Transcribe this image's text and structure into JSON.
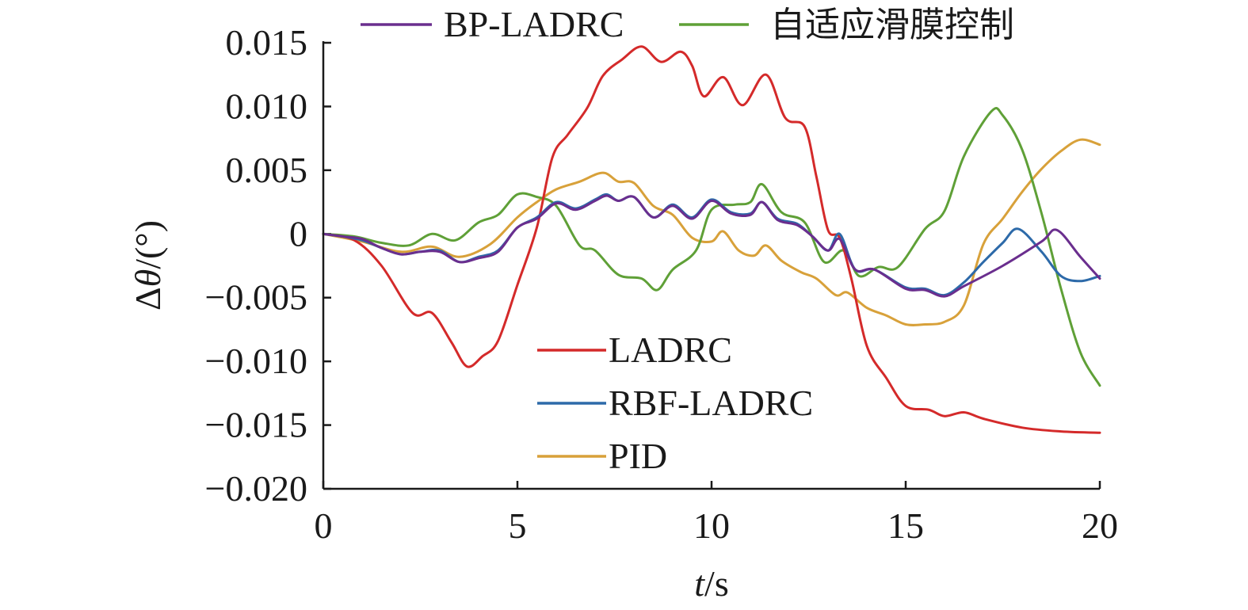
{
  "chart_data": {
    "type": "line",
    "title": "",
    "xlabel_italic": "t",
    "xlabel_unit": "/s",
    "ylabel_symbol": "Δ",
    "ylabel_italic": "θ",
    "ylabel_unit": "/(°)",
    "xlim": [
      0,
      20
    ],
    "ylim": [
      -0.02,
      0.015
    ],
    "x_ticks": [
      0,
      5,
      10,
      15,
      20
    ],
    "x_tick_labels": [
      "0",
      "5",
      "10",
      "15",
      "20"
    ],
    "y_ticks": [
      -0.02,
      -0.015,
      -0.01,
      -0.005,
      0,
      0.005,
      0.01,
      0.015
    ],
    "y_tick_labels": [
      "−0.020",
      "−0.015",
      "−0.010",
      "−0.005",
      "0",
      "0.005",
      "0.010",
      "0.015"
    ],
    "grid": false,
    "legend_placement": "top and center (split)",
    "series": [
      {
        "name": "BP-LADRC",
        "color": "#6a2e8e",
        "points": [
          [
            0,
            0
          ],
          [
            0.5,
            -0.0002
          ],
          [
            1,
            -0.0004
          ],
          [
            1.5,
            -0.0011
          ],
          [
            2,
            -0.0016
          ],
          [
            2.5,
            -0.0014
          ],
          [
            3,
            -0.0014
          ],
          [
            3.5,
            -0.0022
          ],
          [
            4,
            -0.0019
          ],
          [
            4.5,
            -0.0014
          ],
          [
            5,
            0.0005
          ],
          [
            5.5,
            0.0012
          ],
          [
            6,
            0.0024
          ],
          [
            6.5,
            0.0019
          ],
          [
            7,
            0.0026
          ],
          [
            7.3,
            0.003
          ],
          [
            7.6,
            0.0026
          ],
          [
            8,
            0.0029
          ],
          [
            8.5,
            0.0013
          ],
          [
            9,
            0.0022
          ],
          [
            9.5,
            0.0012
          ],
          [
            10,
            0.0026
          ],
          [
            10.5,
            0.0016
          ],
          [
            11,
            0.0015
          ],
          [
            11.3,
            0.0025
          ],
          [
            11.7,
            0.0011
          ],
          [
            12.2,
            0.0007
          ],
          [
            12.6,
            -0.0002
          ],
          [
            13,
            -0.0013
          ],
          [
            13.3,
            -0.0004
          ],
          [
            13.7,
            -0.0028
          ],
          [
            14.2,
            -0.0028
          ],
          [
            15,
            -0.0043
          ],
          [
            15.5,
            -0.0044
          ],
          [
            16,
            -0.0049
          ],
          [
            16.5,
            -0.0041
          ],
          [
            17.5,
            -0.0025
          ],
          [
            18.5,
            -0.0006
          ],
          [
            18.9,
            0.0003
          ],
          [
            19.5,
            -0.0018
          ],
          [
            20,
            -0.0035
          ]
        ]
      },
      {
        "name": "自适应滑膜控制",
        "color": "#5fa037",
        "points": [
          [
            0,
            0
          ],
          [
            0.8,
            -0.0002
          ],
          [
            1.5,
            -0.0007
          ],
          [
            2.2,
            -0.0009
          ],
          [
            2.8,
            0
          ],
          [
            3.4,
            -0.0005
          ],
          [
            4,
            0.0009
          ],
          [
            4.5,
            0.0015
          ],
          [
            5,
            0.0031
          ],
          [
            5.5,
            0.0029
          ],
          [
            6,
            0.0022
          ],
          [
            6.6,
            -0.0009
          ],
          [
            7,
            -0.0013
          ],
          [
            7.6,
            -0.0032
          ],
          [
            8.2,
            -0.0035
          ],
          [
            8.6,
            -0.0044
          ],
          [
            9,
            -0.0028
          ],
          [
            9.6,
            -0.0013
          ],
          [
            10,
            0.0019
          ],
          [
            10.6,
            0.0023
          ],
          [
            11,
            0.0025
          ],
          [
            11.3,
            0.0039
          ],
          [
            11.8,
            0.0017
          ],
          [
            12.4,
            0.0009
          ],
          [
            12.9,
            -0.0022
          ],
          [
            13.4,
            -0.0013
          ],
          [
            13.8,
            -0.0033
          ],
          [
            14.3,
            -0.0026
          ],
          [
            14.8,
            -0.0026
          ],
          [
            15.5,
            0.0004
          ],
          [
            16,
            0.0018
          ],
          [
            16.5,
            0.0061
          ],
          [
            17.2,
            0.0096
          ],
          [
            17.5,
            0.0093
          ],
          [
            18,
            0.0066
          ],
          [
            18.5,
            0.0016
          ],
          [
            19,
            -0.0043
          ],
          [
            19.5,
            -0.0093
          ],
          [
            20,
            -0.0119
          ]
        ]
      },
      {
        "name": "LADRC",
        "color": "#d42a2a",
        "points": [
          [
            0,
            0
          ],
          [
            0.8,
            -0.0005
          ],
          [
            1.5,
            -0.0025
          ],
          [
            2.3,
            -0.0062
          ],
          [
            2.8,
            -0.0062
          ],
          [
            3.3,
            -0.0085
          ],
          [
            3.7,
            -0.0104
          ],
          [
            4.1,
            -0.0096
          ],
          [
            4.5,
            -0.0084
          ],
          [
            5,
            -0.004
          ],
          [
            5.5,
            0.0005
          ],
          [
            5.9,
            0.006
          ],
          [
            6.3,
            0.0078
          ],
          [
            6.8,
            0.0099
          ],
          [
            7.2,
            0.0124
          ],
          [
            7.7,
            0.0137
          ],
          [
            8.2,
            0.0147
          ],
          [
            8.7,
            0.0135
          ],
          [
            9.2,
            0.0143
          ],
          [
            9.5,
            0.0132
          ],
          [
            9.8,
            0.0108
          ],
          [
            10.3,
            0.0123
          ],
          [
            10.8,
            0.0101
          ],
          [
            11.4,
            0.0125
          ],
          [
            11.9,
            0.0091
          ],
          [
            12.4,
            0.0084
          ],
          [
            12.7,
            0.0045
          ],
          [
            13,
            0.0003
          ],
          [
            13.3,
            -0.0003
          ],
          [
            13.6,
            -0.0035
          ],
          [
            14,
            -0.0088
          ],
          [
            14.5,
            -0.0113
          ],
          [
            15,
            -0.0135
          ],
          [
            15.6,
            -0.0138
          ],
          [
            16,
            -0.0143
          ],
          [
            16.5,
            -0.014
          ],
          [
            17,
            -0.0145
          ],
          [
            18,
            -0.0152
          ],
          [
            19,
            -0.0155
          ],
          [
            20,
            -0.0156
          ]
        ]
      },
      {
        "name": "RBF-LADRC",
        "color": "#2d6aa9",
        "points": [
          [
            0,
            0
          ],
          [
            0.5,
            -0.0002
          ],
          [
            1,
            -0.0005
          ],
          [
            1.5,
            -0.0011
          ],
          [
            2,
            -0.0016
          ],
          [
            2.5,
            -0.0014
          ],
          [
            3,
            -0.0013
          ],
          [
            3.5,
            -0.0022
          ],
          [
            4,
            -0.0018
          ],
          [
            4.5,
            -0.0013
          ],
          [
            5,
            0.0005
          ],
          [
            5.5,
            0.0013
          ],
          [
            6,
            0.0025
          ],
          [
            6.5,
            0.002
          ],
          [
            7,
            0.0027
          ],
          [
            7.3,
            0.0031
          ],
          [
            7.6,
            0.0026
          ],
          [
            8,
            0.0029
          ],
          [
            8.5,
            0.0013
          ],
          [
            9,
            0.0023
          ],
          [
            9.5,
            0.0013
          ],
          [
            10,
            0.0027
          ],
          [
            10.5,
            0.0017
          ],
          [
            11,
            0.0016
          ],
          [
            11.3,
            0.0025
          ],
          [
            11.7,
            0.0012
          ],
          [
            12.2,
            0.0008
          ],
          [
            12.6,
            -0.0002
          ],
          [
            13,
            -0.0013
          ],
          [
            13.3,
            0
          ],
          [
            13.7,
            -0.0028
          ],
          [
            14.2,
            -0.0028
          ],
          [
            15,
            -0.0042
          ],
          [
            15.5,
            -0.0043
          ],
          [
            16,
            -0.0048
          ],
          [
            16.5,
            -0.0038
          ],
          [
            17,
            -0.0022
          ],
          [
            17.5,
            -0.0007
          ],
          [
            17.9,
            0.0004
          ],
          [
            18.5,
            -0.0014
          ],
          [
            19,
            -0.0033
          ],
          [
            19.5,
            -0.0037
          ],
          [
            20,
            -0.0033
          ]
        ]
      },
      {
        "name": "PID",
        "color": "#d8a13a",
        "points": [
          [
            0,
            0
          ],
          [
            1,
            -0.0006
          ],
          [
            2,
            -0.0014
          ],
          [
            2.8,
            -0.001
          ],
          [
            3.5,
            -0.0018
          ],
          [
            4.3,
            -0.0008
          ],
          [
            5,
            0.0013
          ],
          [
            5.5,
            0.0025
          ],
          [
            6,
            0.0035
          ],
          [
            6.6,
            0.0041
          ],
          [
            7.2,
            0.0048
          ],
          [
            7.6,
            0.0041
          ],
          [
            8,
            0.004
          ],
          [
            8.5,
            0.0022
          ],
          [
            9,
            0.0015
          ],
          [
            9.5,
            -0.0003
          ],
          [
            10,
            -0.0006
          ],
          [
            10.3,
            0.0002
          ],
          [
            10.7,
            -0.0013
          ],
          [
            11.1,
            -0.0017
          ],
          [
            11.4,
            -0.0009
          ],
          [
            11.8,
            -0.0021
          ],
          [
            12.3,
            -0.003
          ],
          [
            12.7,
            -0.0035
          ],
          [
            13.2,
            -0.0048
          ],
          [
            13.5,
            -0.0046
          ],
          [
            14,
            -0.0058
          ],
          [
            14.5,
            -0.0064
          ],
          [
            15,
            -0.0071
          ],
          [
            15.5,
            -0.0071
          ],
          [
            16,
            -0.0069
          ],
          [
            16.5,
            -0.0056
          ],
          [
            17,
            -0.0008
          ],
          [
            17.5,
            0.0012
          ],
          [
            18,
            0.0033
          ],
          [
            18.5,
            0.0051
          ],
          [
            19,
            0.0065
          ],
          [
            19.5,
            0.0074
          ],
          [
            20,
            0.007
          ]
        ]
      }
    ]
  }
}
